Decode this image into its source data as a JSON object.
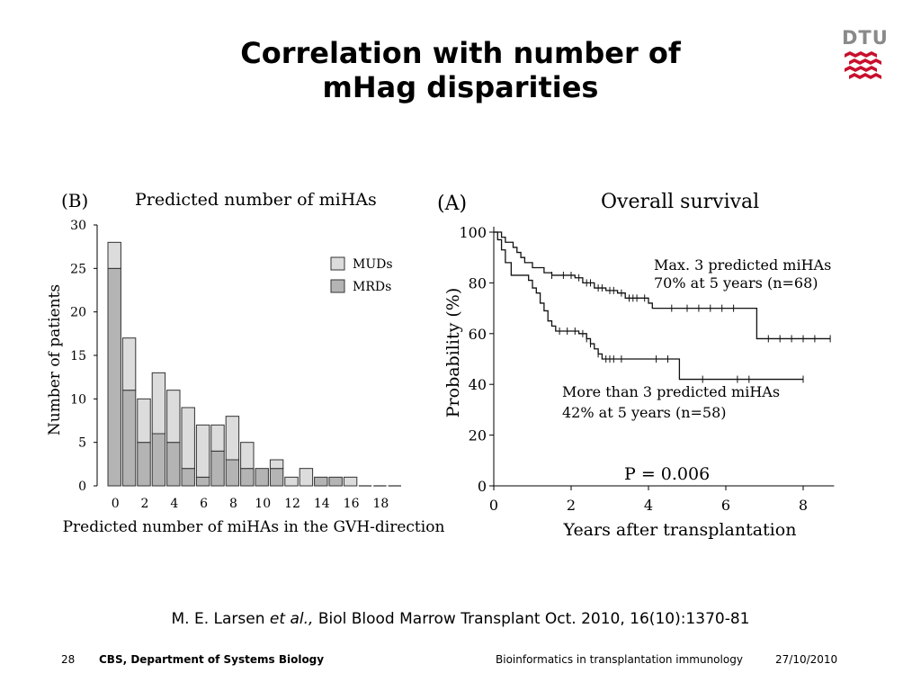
{
  "slide": {
    "title_line1": "Correlation with number of",
    "title_line2": "mHag disparities",
    "logo_text": "DTU",
    "brand_color": "#c8102e"
  },
  "citation": {
    "authors": "M. E. Larsen",
    "etal": "et al.,",
    "journal": "Biol Blood Marrow Transplant Oct. 2010, 16(10):1370-81"
  },
  "footer": {
    "page_number": "28",
    "department": "CBS, Department of Systems Biology",
    "course": "Bioinformatics in transplantation immunology",
    "date": "27/10/2010"
  },
  "chart_data": [
    {
      "type": "bar",
      "panel_label": "(B)",
      "title": "Predicted number of miHAs",
      "xlabel": "Predicted number of miHAs in the GVH-direction",
      "ylabel": "Number of patients",
      "categories": [
        0,
        1,
        2,
        3,
        4,
        5,
        6,
        7,
        8,
        9,
        10,
        11,
        12,
        13,
        14,
        15,
        16,
        17,
        18,
        19
      ],
      "x_tick_labels": [
        "0",
        "2",
        "4",
        "6",
        "8",
        "10",
        "12",
        "14",
        "16",
        "18"
      ],
      "y_tick_labels": [
        "0",
        "5",
        "10",
        "15",
        "20",
        "25",
        "30"
      ],
      "ylim": [
        0,
        30
      ],
      "stacked": true,
      "series": [
        {
          "name": "MRDs",
          "color": "#b4b4b4",
          "values": [
            25,
            11,
            5,
            6,
            5,
            2,
            1,
            4,
            3,
            2,
            2,
            2,
            0,
            0,
            1,
            1,
            0,
            0,
            0,
            0
          ]
        },
        {
          "name": "MUDs",
          "color": "#dcdcdc",
          "values": [
            3,
            6,
            5,
            7,
            6,
            7,
            6,
            3,
            5,
            3,
            0,
            1,
            1,
            2,
            0,
            0,
            1,
            0,
            0,
            0
          ]
        }
      ],
      "legend_position": "top-right"
    },
    {
      "type": "line",
      "panel_label": "(A)",
      "title": "Overall survival",
      "xlabel": "Years after transplantation",
      "ylabel": "Probability (%)",
      "x_tick_labels": [
        "0",
        "2",
        "4",
        "6",
        "8"
      ],
      "y_tick_labels": [
        "0",
        "20",
        "40",
        "60",
        "80",
        "100"
      ],
      "xlim": [
        0,
        8.8
      ],
      "ylim": [
        0,
        100
      ],
      "annotation": "P = 0.006",
      "series": [
        {
          "name": "Max. 3 predicted miHAs",
          "label_line2": "70% at 5 years (n=68)",
          "steps": [
            [
              0,
              100
            ],
            [
              0.2,
              98
            ],
            [
              0.3,
              96
            ],
            [
              0.5,
              94
            ],
            [
              0.6,
              92
            ],
            [
              0.7,
              90
            ],
            [
              0.8,
              88
            ],
            [
              1.0,
              86
            ],
            [
              1.3,
              84
            ],
            [
              1.5,
              83
            ],
            [
              2.1,
              82
            ],
            [
              2.3,
              80
            ],
            [
              2.6,
              78
            ],
            [
              2.9,
              77
            ],
            [
              3.2,
              76
            ],
            [
              3.4,
              74
            ],
            [
              4.0,
              72
            ],
            [
              4.1,
              70
            ],
            [
              6.8,
              70
            ],
            [
              6.8,
              58
            ],
            [
              8.7,
              58
            ]
          ],
          "censors": [
            1.5,
            1.8,
            2.0,
            2.2,
            2.4,
            2.5,
            2.7,
            2.8,
            3.0,
            3.1,
            3.3,
            3.5,
            3.6,
            3.7,
            3.9,
            4.6,
            5.0,
            5.3,
            5.6,
            5.9,
            6.2,
            7.1,
            7.4,
            7.7,
            8.0,
            8.3,
            8.7
          ]
        },
        {
          "name": "More than 3 predicted miHAs",
          "label_line2": "42% at 5 years (n=58)",
          "steps": [
            [
              0,
              100
            ],
            [
              0.1,
              97
            ],
            [
              0.2,
              93
            ],
            [
              0.3,
              88
            ],
            [
              0.45,
              83
            ],
            [
              0.9,
              81
            ],
            [
              1.0,
              78
            ],
            [
              1.1,
              76
            ],
            [
              1.2,
              72
            ],
            [
              1.3,
              69
            ],
            [
              1.4,
              65
            ],
            [
              1.5,
              63
            ],
            [
              1.6,
              61
            ],
            [
              2.2,
              60
            ],
            [
              2.4,
              58
            ],
            [
              2.5,
              56
            ],
            [
              2.6,
              54
            ],
            [
              2.7,
              52
            ],
            [
              2.8,
              50
            ],
            [
              4.8,
              50
            ],
            [
              4.8,
              42
            ],
            [
              8.0,
              42
            ]
          ],
          "censors": [
            1.7,
            1.9,
            2.1,
            2.3,
            2.4,
            2.5,
            2.7,
            2.9,
            3.0,
            3.1,
            3.3,
            4.2,
            4.5,
            5.4,
            6.3,
            6.6,
            8.0
          ]
        }
      ]
    }
  ]
}
